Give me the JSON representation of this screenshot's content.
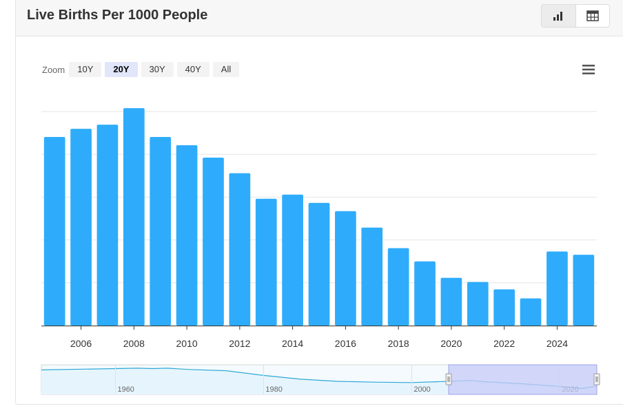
{
  "title": "Live Births Per 1000 People",
  "toolbar": {
    "zoom_label": "Zoom",
    "zoom_options": [
      "10Y",
      "20Y",
      "30Y",
      "40Y",
      "All"
    ],
    "zoom_selected": "20Y",
    "view_icons": [
      "bar-chart-icon",
      "table-icon"
    ],
    "menu_icon": "hamburger-menu-icon"
  },
  "colors": {
    "bar": "#2eacfb",
    "navigator_fill": "#c7cbf7",
    "navigator_line": "#2ea8d6"
  },
  "chart_data": {
    "type": "bar",
    "x": [
      2005,
      2006,
      2007,
      2008,
      2009,
      2010,
      2011,
      2012,
      2013,
      2014,
      2015,
      2016,
      2017,
      2018,
      2019,
      2020,
      2021,
      2022,
      2023,
      2024,
      2025
    ],
    "values": [
      22.9,
      23.9,
      24.4,
      26.4,
      22.9,
      21.9,
      20.4,
      18.5,
      15.4,
      15.9,
      14.9,
      13.9,
      11.9,
      9.4,
      7.8,
      5.8,
      5.3,
      4.4,
      3.3,
      9.0,
      8.6
    ],
    "xticks": [
      "2006",
      "2008",
      "2010",
      "2012",
      "2014",
      "2016",
      "2018",
      "2020",
      "2022",
      "2024"
    ],
    "ylim": [
      0,
      27
    ],
    "grid": true,
    "yticks_shown": false,
    "navigator": {
      "tick_labels": [
        "1960",
        "1980",
        "2000",
        "2020"
      ],
      "range": [
        1950,
        2025
      ],
      "selected_range": [
        2005,
        2025
      ],
      "series": [
        [
          1950,
          44.0
        ],
        [
          1960,
          45.5
        ],
        [
          1963,
          46.0
        ],
        [
          1965,
          45.5
        ],
        [
          1967,
          46.0
        ],
        [
          1970,
          44.5
        ],
        [
          1975,
          43.0
        ],
        [
          1980,
          37.5
        ],
        [
          1985,
          33.0
        ],
        [
          1990,
          30.5
        ],
        [
          1995,
          29.5
        ],
        [
          2000,
          29.0
        ],
        [
          2005,
          30.5
        ],
        [
          2008,
          31.5
        ],
        [
          2010,
          30.0
        ],
        [
          2015,
          27.5
        ],
        [
          2020,
          24.5
        ],
        [
          2023,
          22.0
        ],
        [
          2025,
          25.0
        ]
      ]
    }
  }
}
